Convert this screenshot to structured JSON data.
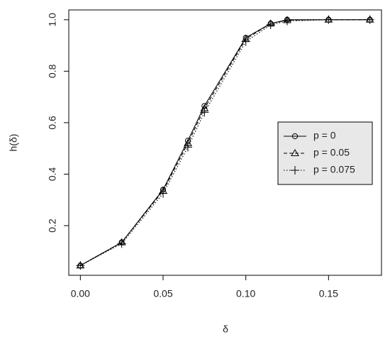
{
  "chart_data": {
    "type": "line",
    "xlabel": "δ",
    "ylabel": "h(δ)",
    "x": [
      0,
      0.025,
      0.05,
      0.065,
      0.075,
      0.1,
      0.115,
      0.125,
      0.15,
      0.175
    ],
    "series": [
      {
        "name": "p = 0",
        "color": "#000000",
        "dash": "solid",
        "marker": "circle",
        "values": [
          0.045,
          0.135,
          0.34,
          0.53,
          0.665,
          0.93,
          0.985,
          1.0,
          1.0,
          1.0
        ]
      },
      {
        "name": "p = 0.05",
        "color": "#000000",
        "dash": "dashed",
        "marker": "triangle",
        "values": [
          0.045,
          0.135,
          0.335,
          0.52,
          0.655,
          0.925,
          0.985,
          0.998,
          1.0,
          1.0
        ]
      },
      {
        "name": "p = 0.075",
        "color": "#000000",
        "dash": "dotted",
        "marker": "plus",
        "values": [
          0.045,
          0.13,
          0.325,
          0.505,
          0.64,
          0.915,
          0.98,
          0.995,
          1.0,
          1.0
        ]
      }
    ],
    "xlim": [
      -0.007,
      0.182
    ],
    "ylim": [
      0.007,
      1.038
    ],
    "xticks": [
      {
        "value": 0,
        "label": "0.00"
      },
      {
        "value": 0.05,
        "label": "0.05"
      },
      {
        "value": 0.1,
        "label": "0.10"
      },
      {
        "value": 0.15,
        "label": "0.15"
      }
    ],
    "yticks": [
      0.2,
      0.4,
      0.6,
      0.8,
      {
        "value": 1,
        "label": "1.0"
      }
    ],
    "legend": "right",
    "legend_background": "#e8e8e8"
  }
}
